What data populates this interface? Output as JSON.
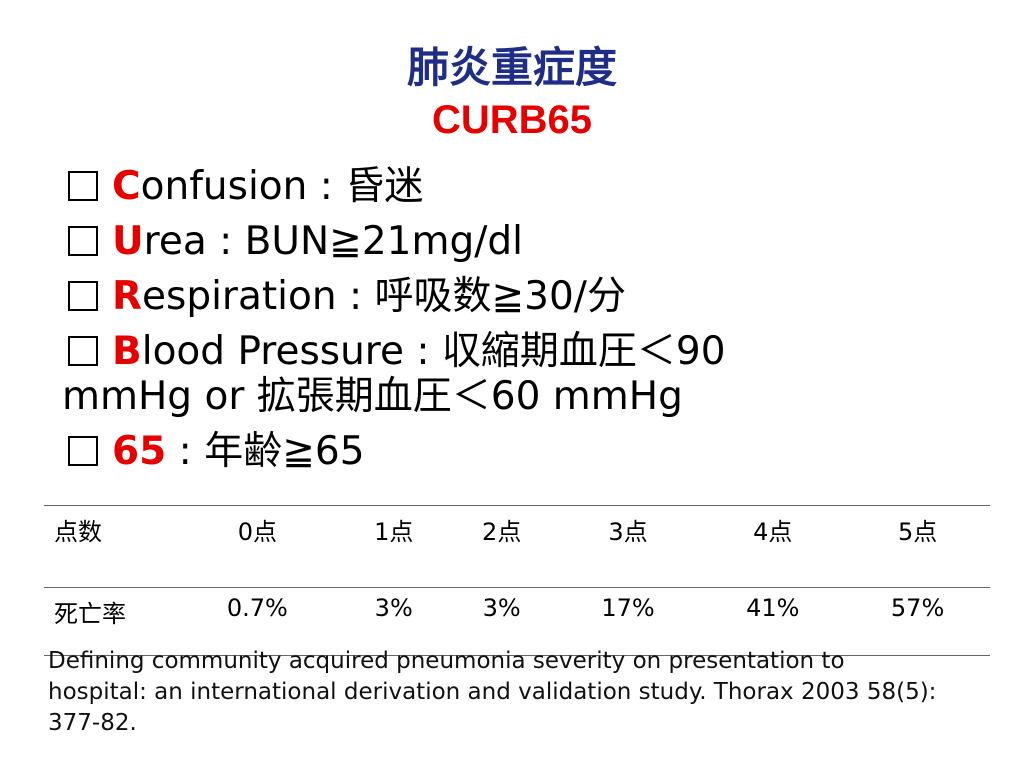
{
  "header": {
    "title": "肺炎重症度",
    "subtitle": "CURB65"
  },
  "criteria": [
    {
      "initial": "C",
      "rest": "onfusion : 昏迷"
    },
    {
      "initial": "U",
      "rest": "rea : BUN≧21mg/dl"
    },
    {
      "initial": "R",
      "rest": "espiration : 呼吸数≧30/分"
    },
    {
      "initial": "B",
      "rest": "lood Pressure : 収縮期血圧＜90 mmHg or 拡張期血圧＜60 mmHg"
    },
    {
      "initial": "65",
      "rest": " : 年齢≧65"
    }
  ],
  "table": {
    "header": [
      "点数",
      "0点",
      "1点",
      "2点",
      "3点",
      "4点",
      "5点"
    ],
    "rows": [
      [
        "死亡率",
        "0.7%",
        "3%",
        "3%",
        "17%",
        "41%",
        "57%"
      ]
    ]
  },
  "citation": "Defining community acquired pneumonia severity on presentation to hospital: an international derivation and validation study. Thorax 2003 58(5): 377-82."
}
